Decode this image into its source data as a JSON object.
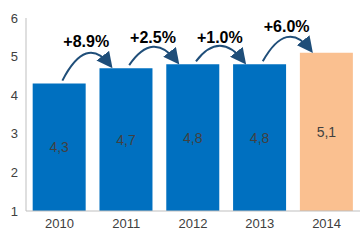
{
  "chart_data": {
    "type": "bar",
    "categories": [
      "2010",
      "2011",
      "2012",
      "2013",
      "2014"
    ],
    "values": [
      4.3,
      4.7,
      4.8,
      4.8,
      5.1
    ],
    "value_labels": [
      "4,3",
      "4,7",
      "4,8",
      "4,8",
      "5,1"
    ],
    "data_labels": true,
    "colors": [
      "#0070c0",
      "#0070c0",
      "#0070c0",
      "#0070c0",
      "#fac090"
    ],
    "ylim": [
      1,
      6
    ],
    "yticks": [
      1,
      2,
      3,
      4,
      5,
      6
    ],
    "grid": false,
    "annotations": [
      "+8.9%",
      "+2.5%",
      "+1.0%",
      "+6.0%"
    ]
  }
}
